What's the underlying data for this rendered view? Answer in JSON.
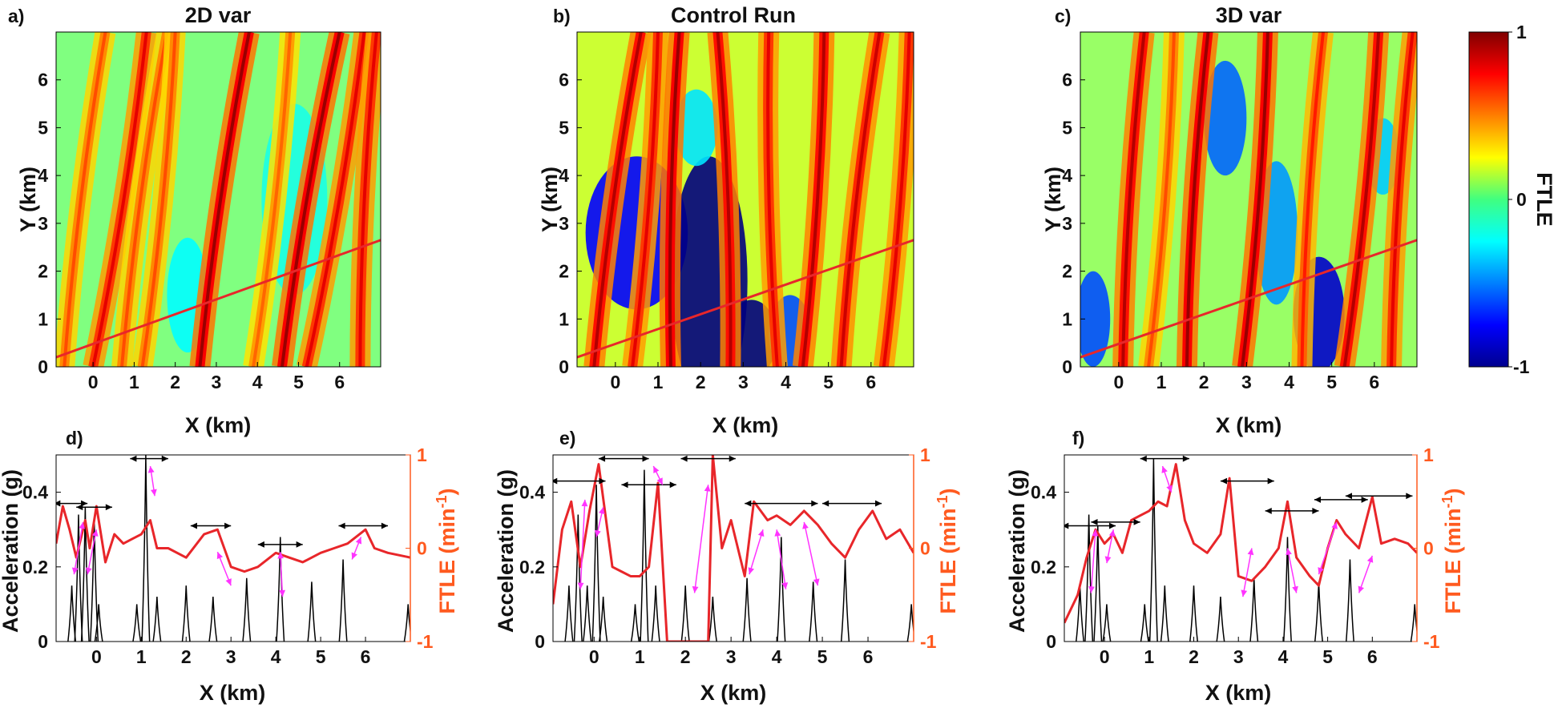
{
  "colors": {
    "trajectory_line": "#e8262a",
    "ftle_curve": "#e8262a",
    "ftle_axis": "#ff5a1f",
    "acceleration": "#000000",
    "arrow_magenta": "#ff33ff",
    "arrow_black": "#000000",
    "colormap": "jet"
  },
  "colorbar": {
    "label": "FTLE",
    "ticks": [
      "1",
      "0",
      "-1"
    ]
  },
  "chart_data": [
    {
      "type": "heatmap",
      "panel_label": "a)",
      "title": "2D var",
      "xlabel": "X (km)",
      "ylabel": "Y (km)",
      "xticks": [
        "0",
        "1",
        "2",
        "3",
        "4",
        "5",
        "6"
      ],
      "yticks": [
        "0",
        "1",
        "2",
        "3",
        "4",
        "5",
        "6"
      ],
      "xlim": [
        -0.9,
        7.0
      ],
      "ylim": [
        0,
        7.0
      ],
      "color_range": [
        -1,
        1
      ],
      "background_level": 0.0,
      "ridges": [
        {
          "x0": -0.7,
          "x1": 0.3,
          "v": 0.6
        },
        {
          "x0": 0.0,
          "x1": 1.3,
          "v": 0.8
        },
        {
          "x0": 0.7,
          "x1": 1.8,
          "v": 0.6
        },
        {
          "x0": 1.2,
          "x1": 2.0,
          "v": 0.6
        },
        {
          "x0": 2.6,
          "x1": 3.8,
          "v": 0.95
        },
        {
          "x0": 3.9,
          "x1": 4.8,
          "v": 0.55
        },
        {
          "x0": 4.6,
          "x1": 6.0,
          "v": 0.95
        },
        {
          "x0": 5.2,
          "x1": 6.6,
          "v": 0.8
        },
        {
          "x0": 6.5,
          "x1": 6.9,
          "v": 0.8
        }
      ],
      "basins": [
        {
          "x": 2.3,
          "y": 1.5,
          "rx": 0.5,
          "ry": 1.2,
          "v": -0.25
        },
        {
          "x": 4.9,
          "y": 3.5,
          "rx": 0.8,
          "ry": 2.0,
          "v": -0.2
        }
      ],
      "line": {
        "x": [
          -0.9,
          7.0
        ],
        "y": [
          0.2,
          2.65
        ]
      }
    },
    {
      "type": "heatmap",
      "panel_label": "b)",
      "title": "Control Run",
      "xlabel": "X (km)",
      "ylabel": "Y (km)",
      "xticks": [
        "0",
        "1",
        "2",
        "3",
        "4",
        "5",
        "6"
      ],
      "yticks": [
        "0",
        "1",
        "2",
        "3",
        "4",
        "5",
        "6"
      ],
      "xlim": [
        -0.9,
        7.0
      ],
      "ylim": [
        0,
        7.0
      ],
      "color_range": [
        -1,
        1
      ],
      "background_level": 0.15,
      "ridges": [
        {
          "x0": -0.5,
          "x1": 0.6,
          "v": 0.9
        },
        {
          "x0": 0.4,
          "x1": 1.0,
          "v": 0.8
        },
        {
          "x0": 1.3,
          "x1": 1.5,
          "v": 0.95
        },
        {
          "x0": 2.7,
          "x1": 2.4,
          "v": 0.9
        },
        {
          "x0": 3.8,
          "x1": 3.6,
          "v": 0.8
        },
        {
          "x0": 4.4,
          "x1": 4.9,
          "v": 0.9
        },
        {
          "x0": 5.3,
          "x1": 6.2,
          "v": 0.85
        },
        {
          "x0": 6.3,
          "x1": 6.9,
          "v": 0.8
        }
      ],
      "basins": [
        {
          "x": 0.5,
          "y": 2.8,
          "rx": 1.2,
          "ry": 1.6,
          "v": -0.75
        },
        {
          "x": 2.2,
          "y": 1.8,
          "rx": 0.9,
          "ry": 2.6,
          "v": -1.0
        },
        {
          "x": 3.2,
          "y": 0.6,
          "rx": 0.6,
          "ry": 0.8,
          "v": -1.0
        },
        {
          "x": 4.1,
          "y": 0.7,
          "rx": 0.5,
          "ry": 0.8,
          "v": -0.6
        },
        {
          "x": 1.9,
          "y": 5.0,
          "rx": 0.5,
          "ry": 0.8,
          "v": -0.3
        }
      ],
      "line": {
        "x": [
          -0.9,
          7.0
        ],
        "y": [
          0.2,
          2.65
        ]
      }
    },
    {
      "type": "heatmap",
      "panel_label": "c)",
      "title": "3D var",
      "xlabel": "X (km)",
      "ylabel": "Y (km)",
      "xticks": [
        "0",
        "1",
        "2",
        "3",
        "4",
        "5",
        "6"
      ],
      "yticks": [
        "0",
        "1",
        "2",
        "3",
        "4",
        "5",
        "6"
      ],
      "xlim": [
        -0.9,
        7.0
      ],
      "ylim": [
        0,
        7.0
      ],
      "color_range": [
        -1,
        1
      ],
      "background_level": 0.05,
      "ridges": [
        {
          "x0": 0.1,
          "x1": 0.6,
          "v": 0.9
        },
        {
          "x0": 0.7,
          "x1": 1.3,
          "v": 0.6
        },
        {
          "x0": 1.6,
          "x1": 2.1,
          "v": 0.95
        },
        {
          "x0": 2.9,
          "x1": 3.5,
          "v": 0.95
        },
        {
          "x0": 4.3,
          "x1": 4.8,
          "v": 0.7
        },
        {
          "x0": 5.3,
          "x1": 6.1,
          "v": 0.9
        },
        {
          "x0": 6.4,
          "x1": 6.9,
          "v": 0.8
        }
      ],
      "basins": [
        {
          "x": -0.6,
          "y": 1.0,
          "rx": 0.4,
          "ry": 1.0,
          "v": -0.6
        },
        {
          "x": 2.5,
          "y": 5.2,
          "rx": 0.5,
          "ry": 1.2,
          "v": -0.55
        },
        {
          "x": 3.7,
          "y": 2.8,
          "rx": 0.5,
          "ry": 1.5,
          "v": -0.45
        },
        {
          "x": 4.7,
          "y": 1.1,
          "rx": 0.6,
          "ry": 1.2,
          "v": -0.85
        },
        {
          "x": 6.2,
          "y": 4.4,
          "rx": 0.4,
          "ry": 0.8,
          "v": -0.35
        }
      ],
      "line": {
        "x": [
          -0.9,
          7.0
        ],
        "y": [
          0.2,
          2.65
        ]
      }
    },
    {
      "type": "line",
      "panel_label": "d)",
      "xlabel": "X (km)",
      "ylabel": "Acceleration (g)",
      "ylabel_right": "FTLE (min",
      "ylabel_right_sup": "-1",
      "ylabel_right_end": ")",
      "xticks": [
        "0",
        "1",
        "2",
        "3",
        "4",
        "5",
        "6"
      ],
      "yticks": [
        "0",
        "0.2",
        "0.4"
      ],
      "yticks_right": [
        "-1",
        "0",
        "1"
      ],
      "xlim": [
        -0.9,
        7.0
      ],
      "ylim": [
        0,
        0.5
      ],
      "ylim_right": [
        -1,
        1
      ],
      "acceleration_peaks": [
        {
          "x": -0.55,
          "y": 0.15
        },
        {
          "x": -0.4,
          "y": 0.34
        },
        {
          "x": -0.25,
          "y": 0.36
        },
        {
          "x": -0.05,
          "y": 0.33
        },
        {
          "x": 0.05,
          "y": 0.1
        },
        {
          "x": 0.9,
          "y": 0.1
        },
        {
          "x": 1.1,
          "y": 0.5
        },
        {
          "x": 1.35,
          "y": 0.12
        },
        {
          "x": 2.0,
          "y": 0.15
        },
        {
          "x": 2.6,
          "y": 0.12
        },
        {
          "x": 3.35,
          "y": 0.17
        },
        {
          "x": 4.1,
          "y": 0.28
        },
        {
          "x": 4.8,
          "y": 0.16
        },
        {
          "x": 5.5,
          "y": 0.22
        },
        {
          "x": 6.95,
          "y": 0.1
        }
      ],
      "ftle_points": {
        "x": [
          -0.9,
          -0.75,
          -0.6,
          -0.45,
          -0.35,
          -0.25,
          -0.15,
          0.0,
          0.2,
          0.4,
          0.6,
          0.8,
          1.0,
          1.2,
          1.35,
          1.6,
          2.0,
          2.4,
          2.7,
          3.0,
          3.3,
          3.6,
          4.0,
          4.3,
          4.6,
          5.0,
          5.3,
          5.6,
          6.0,
          6.2,
          6.5,
          7.0
        ],
        "y": [
          0.05,
          0.45,
          0.2,
          -0.1,
          0.1,
          0.3,
          0.0,
          0.45,
          -0.15,
          0.15,
          0.05,
          0.1,
          0.15,
          0.3,
          0.0,
          0.0,
          -0.1,
          0.15,
          0.2,
          -0.2,
          -0.25,
          -0.2,
          -0.05,
          -0.1,
          -0.15,
          -0.05,
          0.0,
          0.05,
          0.2,
          0.0,
          -0.05,
          -0.1
        ]
      },
      "black_arrows": [
        {
          "x1": -0.95,
          "x2": -0.2,
          "y": 0.37
        },
        {
          "x1": -0.45,
          "x2": 0.35,
          "y": 0.36
        },
        {
          "x1": 0.75,
          "x2": 1.6,
          "y": 0.49
        },
        {
          "x1": 2.1,
          "x2": 3.0,
          "y": 0.31
        },
        {
          "x1": 3.6,
          "x2": 4.6,
          "y": 0.26
        },
        {
          "x1": 5.4,
          "x2": 6.5,
          "y": 0.31
        }
      ],
      "magenta_arrows": [
        {
          "x1": -0.3,
          "y1": 0.32,
          "x2": -0.5,
          "y2": 0.18
        },
        {
          "x1": 0.0,
          "y1": 0.3,
          "x2": -0.2,
          "y2": 0.18
        },
        {
          "x1": 1.2,
          "y1": 0.47,
          "x2": 1.3,
          "y2": 0.39
        },
        {
          "x1": 2.7,
          "y1": 0.24,
          "x2": 3.0,
          "y2": 0.15
        },
        {
          "x1": 4.1,
          "y1": 0.24,
          "x2": 4.15,
          "y2": 0.12
        },
        {
          "x1": 5.7,
          "y1": 0.22,
          "x2": 5.9,
          "y2": 0.28
        }
      ]
    },
    {
      "type": "line",
      "panel_label": "e)",
      "xlabel": "X (km)",
      "ylabel": "Acceleration (g)",
      "ylabel_right": "FTLE (min",
      "ylabel_right_sup": "-1",
      "ylabel_right_end": ")",
      "xticks": [
        "0",
        "1",
        "2",
        "3",
        "4",
        "5",
        "6"
      ],
      "yticks": [
        "0",
        "0.2",
        "0.4"
      ],
      "yticks_right": [
        "-1",
        "0",
        "1"
      ],
      "xlim": [
        -0.9,
        7.0
      ],
      "ylim": [
        0,
        0.5
      ],
      "ylim_right": [
        -1,
        1
      ],
      "acceleration_peaks": [
        {
          "x": -0.55,
          "y": 0.15
        },
        {
          "x": -0.35,
          "y": 0.34
        },
        {
          "x": -0.15,
          "y": 0.15
        },
        {
          "x": 0.05,
          "y": 0.42
        },
        {
          "x": 0.2,
          "y": 0.12
        },
        {
          "x": 0.9,
          "y": 0.1
        },
        {
          "x": 1.1,
          "y": 0.46
        },
        {
          "x": 1.35,
          "y": 0.15
        },
        {
          "x": 2.0,
          "y": 0.15
        },
        {
          "x": 2.6,
          "y": 0.12
        },
        {
          "x": 3.35,
          "y": 0.17
        },
        {
          "x": 4.1,
          "y": 0.28
        },
        {
          "x": 4.8,
          "y": 0.16
        },
        {
          "x": 5.5,
          "y": 0.22
        },
        {
          "x": 6.95,
          "y": 0.1
        }
      ],
      "ftle_points": {
        "x": [
          -0.9,
          -0.7,
          -0.5,
          -0.3,
          -0.1,
          0.1,
          0.25,
          0.4,
          0.6,
          0.8,
          1.0,
          1.2,
          1.4,
          1.6,
          1.8,
          2.0,
          2.2,
          2.5,
          2.6,
          2.8,
          3.0,
          3.3,
          3.5,
          3.8,
          4.0,
          4.3,
          4.6,
          4.9,
          5.2,
          5.5,
          5.8,
          6.1,
          6.4,
          6.7,
          7.0
        ],
        "y": [
          -0.6,
          0.2,
          0.5,
          -0.2,
          0.4,
          0.9,
          0.35,
          -0.2,
          -0.25,
          -0.3,
          -0.3,
          -0.2,
          0.7,
          -1.0,
          -1.0,
          -1.0,
          -1.0,
          -1.0,
          1.0,
          0.0,
          0.3,
          -0.3,
          0.5,
          0.3,
          0.35,
          0.25,
          0.4,
          0.25,
          0.05,
          -0.1,
          0.2,
          0.4,
          0.1,
          0.2,
          -0.05
        ]
      },
      "black_arrows": [
        {
          "x1": -0.95,
          "x2": 0.25,
          "y": 0.43
        },
        {
          "x1": 0.1,
          "x2": 1.2,
          "y": 0.49
        },
        {
          "x1": 0.6,
          "x2": 1.8,
          "y": 0.42
        },
        {
          "x1": 1.9,
          "x2": 3.1,
          "y": 0.49
        },
        {
          "x1": 3.3,
          "x2": 4.9,
          "y": 0.37
        },
        {
          "x1": 5.0,
          "x2": 6.3,
          "y": 0.37
        }
      ],
      "magenta_arrows": [
        {
          "x1": -0.2,
          "y1": 0.38,
          "x2": -0.3,
          "y2": 0.14
        },
        {
          "x1": 0.2,
          "y1": 0.36,
          "x2": 0.05,
          "y2": 0.28
        },
        {
          "x1": 1.3,
          "y1": 0.47,
          "x2": 1.5,
          "y2": 0.42
        },
        {
          "x1": 2.5,
          "y1": 0.42,
          "x2": 2.2,
          "y2": 0.13
        },
        {
          "x1": 3.7,
          "y1": 0.3,
          "x2": 3.4,
          "y2": 0.18
        },
        {
          "x1": 4.0,
          "y1": 0.3,
          "x2": 4.2,
          "y2": 0.14
        },
        {
          "x1": 4.6,
          "y1": 0.32,
          "x2": 4.9,
          "y2": 0.15
        }
      ]
    },
    {
      "type": "line",
      "panel_label": "f)",
      "xlabel": "X (km)",
      "ylabel": "Acceleration (g)",
      "ylabel_right": "FTLE (min",
      "ylabel_right_sup": "-1",
      "ylabel_right_end": ")",
      "xticks": [
        "0",
        "1",
        "2",
        "3",
        "4",
        "5",
        "6"
      ],
      "yticks": [
        "0",
        "0.2",
        "0.4"
      ],
      "yticks_right": [
        "-1",
        "0",
        "1"
      ],
      "xlim": [
        -0.9,
        7.0
      ],
      "ylim": [
        0,
        0.5
      ],
      "ylim_right": [
        -1,
        1
      ],
      "acceleration_peaks": [
        {
          "x": -0.55,
          "y": 0.15
        },
        {
          "x": -0.35,
          "y": 0.34
        },
        {
          "x": -0.15,
          "y": 0.31
        },
        {
          "x": 0.05,
          "y": 0.1
        },
        {
          "x": 0.9,
          "y": 0.1
        },
        {
          "x": 1.1,
          "y": 0.49
        },
        {
          "x": 1.35,
          "y": 0.15
        },
        {
          "x": 2.0,
          "y": 0.15
        },
        {
          "x": 2.6,
          "y": 0.12
        },
        {
          "x": 3.35,
          "y": 0.17
        },
        {
          "x": 4.1,
          "y": 0.28
        },
        {
          "x": 4.8,
          "y": 0.16
        },
        {
          "x": 5.5,
          "y": 0.22
        },
        {
          "x": 6.95,
          "y": 0.1
        }
      ],
      "ftle_points": {
        "x": [
          -0.9,
          -0.6,
          -0.4,
          -0.2,
          0.0,
          0.2,
          0.4,
          0.6,
          0.8,
          1.0,
          1.2,
          1.4,
          1.6,
          1.8,
          2.0,
          2.3,
          2.6,
          2.8,
          3.0,
          3.3,
          3.6,
          3.9,
          4.1,
          4.3,
          4.6,
          4.8,
          5.0,
          5.2,
          5.4,
          5.7,
          6.0,
          6.2,
          6.5,
          6.8,
          7.0
        ],
        "y": [
          -0.8,
          -0.5,
          -0.1,
          0.2,
          0.05,
          0.15,
          -0.05,
          0.3,
          0.35,
          0.4,
          0.5,
          0.45,
          0.9,
          0.3,
          0.05,
          -0.05,
          0.15,
          0.75,
          -0.3,
          -0.35,
          -0.2,
          0.0,
          0.5,
          -0.1,
          -0.3,
          -0.4,
          0.0,
          0.3,
          0.15,
          0.0,
          0.55,
          0.05,
          0.1,
          0.05,
          -0.05
        ]
      },
      "black_arrows": [
        {
          "x1": -0.95,
          "x2": 0.25,
          "y": 0.31
        },
        {
          "x1": -0.3,
          "x2": 0.8,
          "y": 0.32
        },
        {
          "x1": 0.8,
          "x2": 1.9,
          "y": 0.49
        },
        {
          "x1": 2.6,
          "x2": 3.8,
          "y": 0.43
        },
        {
          "x1": 3.6,
          "x2": 4.8,
          "y": 0.35
        },
        {
          "x1": 4.7,
          "x2": 5.9,
          "y": 0.38
        },
        {
          "x1": 5.4,
          "x2": 6.9,
          "y": 0.39
        }
      ],
      "magenta_arrows": [
        {
          "x1": -0.2,
          "y1": 0.3,
          "x2": -0.3,
          "y2": 0.13
        },
        {
          "x1": 0.2,
          "y1": 0.3,
          "x2": 0.05,
          "y2": 0.21
        },
        {
          "x1": 1.3,
          "y1": 0.47,
          "x2": 1.5,
          "y2": 0.4
        },
        {
          "x1": 3.3,
          "y1": 0.25,
          "x2": 3.1,
          "y2": 0.12
        },
        {
          "x1": 4.1,
          "y1": 0.25,
          "x2": 4.3,
          "y2": 0.13
        },
        {
          "x1": 5.2,
          "y1": 0.32,
          "x2": 4.8,
          "y2": 0.18
        },
        {
          "x1": 6.0,
          "y1": 0.23,
          "x2": 5.7,
          "y2": 0.13
        }
      ]
    }
  ]
}
